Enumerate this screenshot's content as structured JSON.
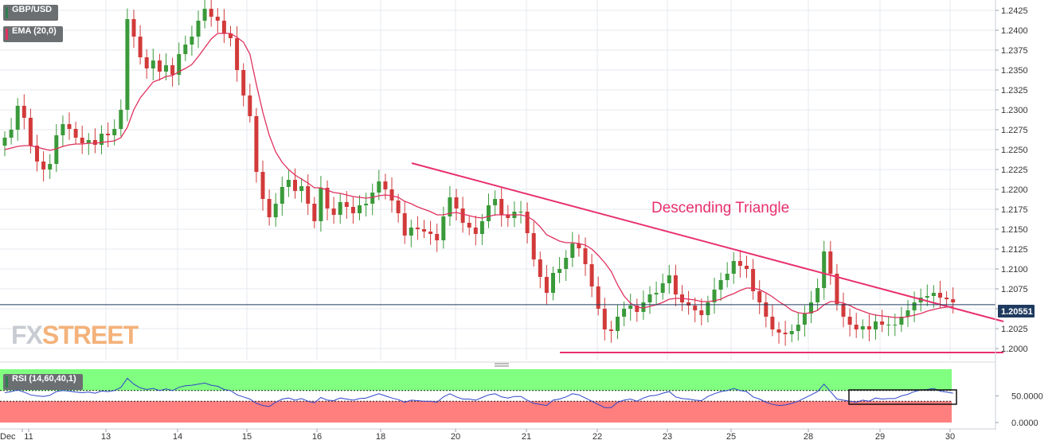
{
  "window": {
    "symbol": "GBP/USD",
    "indicator": "EMA (20,0)",
    "rsi_label": "RSI (14,60,40,1)",
    "watermark_fx": "FX",
    "watermark_street": "STREET",
    "current_price_label": "1.20551"
  },
  "colors": {
    "background": "#ffffff",
    "grid": "#e6e9ef",
    "bull": "#3a9a3a",
    "bear": "#d23a3a",
    "ema": "#e0305e",
    "trendline": "#e8306d",
    "rsi_line": "#2f45c8",
    "rsi_upper_zone": "#80ff80",
    "rsi_lower_zone": "#ff7f7f",
    "price_line": "#1f3a5f",
    "badge": "#6b6f72",
    "badge_symbol_accent": "#2e7d4f",
    "badge_ema_accent": "#e0305e",
    "watermark": "#c8ccd2",
    "watermark_accent": "#f4b27a"
  },
  "chart_data": [
    {
      "type": "candlestick",
      "title": "GBP/USD",
      "series": [
        {
          "name": "GBP/USD",
          "close": [
            1.2265,
            1.2275,
            1.2305,
            1.229,
            1.2255,
            1.2235,
            1.2225,
            1.2232,
            1.2268,
            1.2282,
            1.2276,
            1.2265,
            1.2258,
            1.2262,
            1.2256,
            1.227,
            1.2268,
            1.2276,
            1.23,
            1.2414,
            1.2392,
            1.2366,
            1.2352,
            1.2362,
            1.2348,
            1.2356,
            1.2344,
            1.237,
            1.2382,
            1.2392,
            1.2412,
            1.2427,
            1.2417,
            1.2412,
            1.2396,
            1.239,
            1.235,
            1.2318,
            1.2292,
            1.2222,
            1.2188,
            1.2165,
            1.2182,
            1.2203,
            1.2212,
            1.2198,
            1.2204,
            1.2182,
            1.216,
            1.2202,
            1.2176,
            1.2168,
            1.2184,
            1.2178,
            1.217,
            1.218,
            1.2182,
            1.2196,
            1.221,
            1.22,
            1.2186,
            1.217,
            1.2142,
            1.2152,
            1.215,
            1.2147,
            1.2144,
            1.2136,
            1.2166,
            1.219,
            1.2176,
            1.2158,
            1.2152,
            1.2144,
            1.216,
            1.218,
            1.2188,
            1.2168,
            1.2164,
            1.2172,
            1.2172,
            1.2145,
            1.2112,
            1.209,
            1.207,
            1.2095,
            1.21,
            1.2114,
            1.2132,
            1.2126,
            1.2106,
            1.2078,
            1.205,
            1.2024,
            1.2022,
            1.204,
            1.205,
            1.2054,
            1.2046,
            1.2058,
            1.2068,
            1.207,
            1.2082,
            1.2092,
            1.2068,
            1.2058,
            1.2054,
            1.2048,
            1.2042,
            1.2058,
            1.2074,
            1.2086,
            1.2094,
            1.211,
            1.2104,
            1.21,
            1.2072,
            1.2058,
            1.204,
            1.2024,
            1.202,
            1.2018,
            1.2022,
            1.203,
            1.2044,
            1.2058,
            1.2076,
            1.2122,
            1.2094,
            1.2056,
            1.204,
            1.203,
            1.2024,
            1.2028,
            1.2024,
            1.2034,
            1.203,
            1.203,
            1.203,
            1.204,
            1.2048,
            1.2058,
            1.2064,
            1.2066,
            1.207,
            1.2064,
            1.2062,
            1.2058
          ],
          "ema": [
            1.225,
            1.2252,
            1.2254,
            1.2255,
            1.2255,
            1.2253,
            1.2251,
            1.2249,
            1.2251,
            1.2254,
            1.2256,
            1.2257,
            1.2257,
            1.2258,
            1.2258,
            1.2259,
            1.226,
            1.2261,
            1.2265,
            1.2278,
            1.23,
            1.2315,
            1.2325,
            1.2335,
            1.2338,
            1.2342,
            1.2343,
            1.2348,
            1.2352,
            1.2357,
            1.2367,
            1.2378,
            1.2389,
            1.2396,
            1.2396,
            1.2396,
            1.2391,
            1.2385,
            1.237,
            1.2332,
            1.2297,
            1.2268,
            1.2247,
            1.2234,
            1.2225,
            1.2218,
            1.2213,
            1.2208,
            1.2202,
            1.2202,
            1.2199,
            1.2196,
            1.2195,
            1.2193,
            1.2191,
            1.219,
            1.2189,
            1.219,
            1.2192,
            1.2193,
            1.2192,
            1.219,
            1.2185,
            1.2182,
            1.2178,
            1.2175,
            1.2172,
            1.2168,
            1.2168,
            1.217,
            1.2171,
            1.2169,
            1.2167,
            1.2165,
            1.2164,
            1.2166,
            1.2168,
            1.2168,
            1.2168,
            1.2168,
            1.2168,
            1.2166,
            1.2161,
            1.2153,
            1.2143,
            1.2139,
            1.2135,
            1.2133,
            1.2133,
            1.2132,
            1.213,
            1.2125,
            1.2117,
            1.2108,
            1.2097,
            1.208,
            1.2066,
            1.2057,
            1.2052,
            1.2051,
            1.2053,
            1.2055,
            1.2058,
            1.2062,
            1.2063,
            1.2063,
            1.2062,
            1.2061,
            1.2059,
            1.2059,
            1.206,
            1.2062,
            1.2066,
            1.2069,
            1.2073,
            1.2076,
            1.2076,
            1.2074,
            1.207,
            1.2065,
            1.2059,
            1.2054,
            1.2048,
            1.2045,
            1.2044,
            1.2045,
            1.2048,
            1.2055,
            1.2059,
            1.2059,
            1.2057,
            1.2054,
            1.205,
            1.2047,
            1.2044,
            1.2042,
            1.2041,
            1.204,
            1.2039,
            1.2039,
            1.204,
            1.2042,
            1.2044,
            1.2047,
            1.2049,
            1.2051,
            1.2052,
            1.2053
          ],
          "current_price": 1.20551
        }
      ],
      "annotations": [
        {
          "text": "Descending Triangle",
          "type": "trendline",
          "from": {
            "x": "Dec 18 (late)",
            "y": 1.2241
          },
          "to": {
            "x": "Dec 30 (+)",
            "y": 1.2032
          }
        },
        {
          "type": "horizontal_support",
          "y": 1.1995
        }
      ],
      "x_tick_labels": [
        "Dec",
        "11",
        "13",
        "14",
        "15",
        "16",
        "18",
        "20",
        "21",
        "22",
        "23",
        "25",
        "28",
        "29",
        "30"
      ],
      "y_tick_labels": [
        "1.2000",
        "1.2025",
        "1.2050",
        "1.2075",
        "1.2100",
        "1.2125",
        "1.2150",
        "1.2175",
        "1.2200",
        "1.2225",
        "1.2250",
        "1.2275",
        "1.2300",
        "1.2325",
        "1.2350",
        "1.2375",
        "1.2400",
        "1.2425"
      ],
      "ylim": [
        1.1985,
        1.2438
      ],
      "grid": true
    },
    {
      "type": "line",
      "title": "RSI (14,60,40,1)",
      "series": [
        {
          "name": "RSI (14,60,40,1)",
          "values": [
            56,
            58,
            61,
            57,
            52,
            50,
            49,
            51,
            58,
            60,
            59,
            57,
            56,
            57,
            55,
            59,
            58,
            60,
            66,
            83,
            72,
            65,
            62,
            64,
            60,
            63,
            60,
            66,
            69,
            70,
            72,
            74,
            70,
            68,
            62,
            60,
            52,
            48,
            44,
            36,
            32,
            30,
            38,
            44,
            46,
            42,
            45,
            40,
            37,
            47,
            42,
            41,
            46,
            44,
            42,
            45,
            46,
            50,
            54,
            50,
            46,
            43,
            38,
            42,
            41,
            40,
            40,
            38,
            48,
            54,
            48,
            44,
            44,
            42,
            47,
            52,
            54,
            48,
            46,
            49,
            49,
            42,
            36,
            34,
            32,
            42,
            44,
            48,
            54,
            52,
            46,
            40,
            34,
            28,
            28,
            38,
            42,
            44,
            40,
            46,
            50,
            51,
            55,
            58,
            48,
            45,
            44,
            42,
            41,
            49,
            54,
            58,
            60,
            64,
            60,
            58,
            48,
            44,
            38,
            34,
            32,
            33,
            36,
            40,
            46,
            52,
            58,
            72,
            58,
            44,
            42,
            40,
            38,
            42,
            40,
            46,
            44,
            45,
            45,
            50,
            53,
            58,
            61,
            62,
            64,
            59,
            57,
            55
          ]
        }
      ],
      "reference_lines": [
        60,
        40
      ],
      "y_tick_labels": [
        "0.0000",
        "50.0000"
      ],
      "ylim": [
        0,
        100
      ]
    }
  ]
}
